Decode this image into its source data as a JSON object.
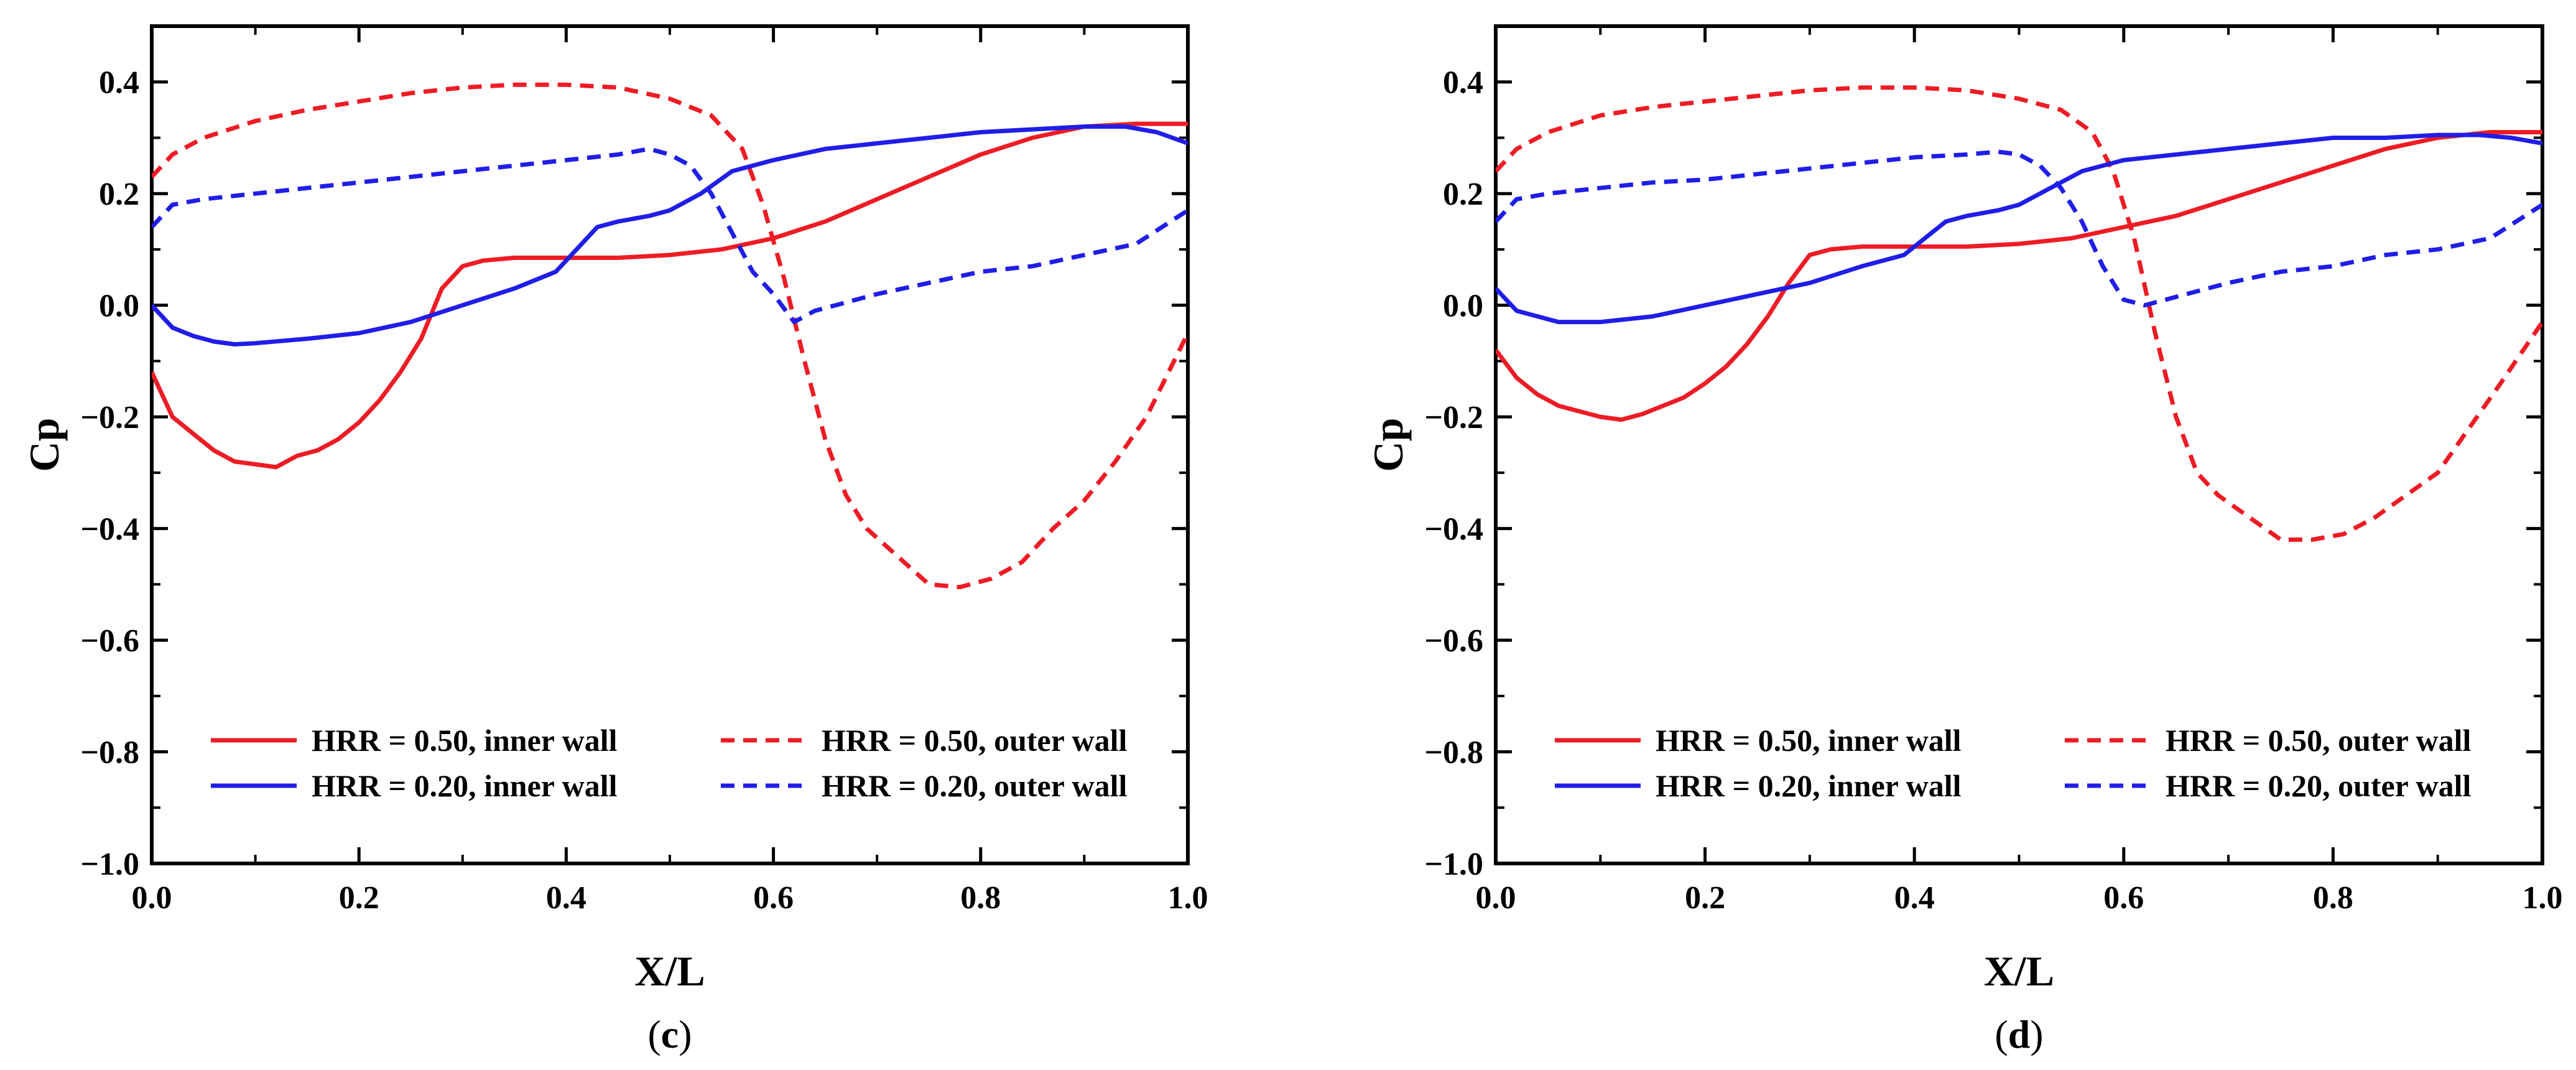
{
  "chart_data": [
    {
      "type": "line",
      "panel_label": {
        "open": "(",
        "letter": "c",
        "close": ")"
      },
      "xlabel": "X/L",
      "ylabel": "Cp",
      "xlim": [
        0.0,
        1.0
      ],
      "ylim": [
        -1.0,
        0.5
      ],
      "xticks": [
        0.0,
        0.2,
        0.4,
        0.6,
        0.8,
        1.0
      ],
      "xtick_labels": [
        "0.0",
        "0.2",
        "0.4",
        "0.6",
        "0.8",
        "1.0"
      ],
      "yticks": [
        -1.0,
        -0.8,
        -0.6,
        -0.4,
        -0.2,
        0.0,
        0.2,
        0.4
      ],
      "ytick_labels": [
        "−1.0",
        "−0.8",
        "−0.6",
        "−0.4",
        "−0.2",
        "0.0",
        "0.2",
        "0.4"
      ],
      "legend_position": "lower-left",
      "series": [
        {
          "name": "HRR = 0.50, inner wall",
          "color": "#ee1c25",
          "style": "solid",
          "x": [
            0.0,
            0.02,
            0.04,
            0.06,
            0.08,
            0.1,
            0.12,
            0.14,
            0.16,
            0.18,
            0.2,
            0.22,
            0.24,
            0.26,
            0.28,
            0.3,
            0.32,
            0.35,
            0.4,
            0.45,
            0.5,
            0.55,
            0.6,
            0.65,
            0.7,
            0.75,
            0.8,
            0.85,
            0.9,
            0.95,
            1.0
          ],
          "y": [
            -0.12,
            -0.2,
            -0.23,
            -0.26,
            -0.28,
            -0.285,
            -0.29,
            -0.27,
            -0.26,
            -0.24,
            -0.21,
            -0.17,
            -0.12,
            -0.06,
            0.03,
            0.07,
            0.08,
            0.085,
            0.085,
            0.085,
            0.09,
            0.1,
            0.12,
            0.15,
            0.19,
            0.23,
            0.27,
            0.3,
            0.32,
            0.325,
            0.325
          ]
        },
        {
          "name": "HRR = 0.50, outer wall",
          "color": "#ee1c25",
          "style": "dashed",
          "x": [
            0.0,
            0.02,
            0.05,
            0.1,
            0.15,
            0.2,
            0.25,
            0.3,
            0.35,
            0.4,
            0.45,
            0.5,
            0.54,
            0.57,
            0.59,
            0.61,
            0.63,
            0.65,
            0.67,
            0.69,
            0.72,
            0.75,
            0.78,
            0.81,
            0.84,
            0.87,
            0.9,
            0.93,
            0.96,
            1.0
          ],
          "y": [
            0.23,
            0.27,
            0.3,
            0.33,
            0.35,
            0.365,
            0.38,
            0.39,
            0.395,
            0.395,
            0.39,
            0.37,
            0.34,
            0.28,
            0.18,
            0.05,
            -0.1,
            -0.24,
            -0.34,
            -0.4,
            -0.45,
            -0.5,
            -0.505,
            -0.49,
            -0.46,
            -0.4,
            -0.35,
            -0.28,
            -0.2,
            -0.05
          ]
        },
        {
          "name": "HRR = 0.20, inner wall",
          "color": "#1f1ee8",
          "style": "solid",
          "x": [
            0.0,
            0.02,
            0.04,
            0.06,
            0.08,
            0.1,
            0.15,
            0.2,
            0.25,
            0.3,
            0.35,
            0.39,
            0.41,
            0.43,
            0.45,
            0.48,
            0.5,
            0.53,
            0.56,
            0.6,
            0.65,
            0.7,
            0.75,
            0.8,
            0.85,
            0.9,
            0.94,
            0.97,
            1.0
          ],
          "y": [
            0.0,
            -0.04,
            -0.055,
            -0.065,
            -0.07,
            -0.068,
            -0.06,
            -0.05,
            -0.03,
            0.0,
            0.03,
            0.06,
            0.1,
            0.14,
            0.15,
            0.16,
            0.17,
            0.2,
            0.24,
            0.26,
            0.28,
            0.29,
            0.3,
            0.31,
            0.315,
            0.32,
            0.32,
            0.31,
            0.29
          ]
        },
        {
          "name": "HRR = 0.20, outer wall",
          "color": "#1f1ee8",
          "style": "dashed",
          "x": [
            0.0,
            0.02,
            0.05,
            0.1,
            0.15,
            0.2,
            0.25,
            0.3,
            0.35,
            0.4,
            0.45,
            0.48,
            0.5,
            0.52,
            0.54,
            0.56,
            0.58,
            0.6,
            0.62,
            0.64,
            0.66,
            0.7,
            0.75,
            0.8,
            0.85,
            0.9,
            0.95,
            1.0
          ],
          "y": [
            0.14,
            0.18,
            0.19,
            0.2,
            0.21,
            0.22,
            0.23,
            0.24,
            0.25,
            0.26,
            0.27,
            0.28,
            0.27,
            0.25,
            0.2,
            0.13,
            0.06,
            0.02,
            -0.03,
            -0.01,
            0.0,
            0.02,
            0.04,
            0.06,
            0.07,
            0.09,
            0.11,
            0.17
          ]
        }
      ]
    },
    {
      "type": "line",
      "panel_label": {
        "open": "(",
        "letter": "d",
        "close": ")"
      },
      "xlabel": "X/L",
      "ylabel": "Cp",
      "xlim": [
        0.0,
        1.0
      ],
      "ylim": [
        -1.0,
        0.5
      ],
      "xticks": [
        0.0,
        0.2,
        0.4,
        0.6,
        0.8,
        1.0
      ],
      "xtick_labels": [
        "0.0",
        "0.2",
        "0.4",
        "0.6",
        "0.8",
        "1.0"
      ],
      "yticks": [
        -1.0,
        -0.8,
        -0.6,
        -0.4,
        -0.2,
        0.0,
        0.2,
        0.4
      ],
      "ytick_labels": [
        "−1.0",
        "−0.8",
        "−0.6",
        "−0.4",
        "−0.2",
        "0.0",
        "0.2",
        "0.4"
      ],
      "legend_position": "lower-left",
      "series": [
        {
          "name": "HRR = 0.50, inner wall",
          "color": "#ee1c25",
          "style": "solid",
          "x": [
            0.0,
            0.02,
            0.04,
            0.06,
            0.08,
            0.1,
            0.12,
            0.14,
            0.16,
            0.18,
            0.2,
            0.22,
            0.24,
            0.26,
            0.28,
            0.3,
            0.32,
            0.35,
            0.4,
            0.45,
            0.5,
            0.55,
            0.6,
            0.65,
            0.7,
            0.75,
            0.8,
            0.85,
            0.9,
            0.95,
            1.0
          ],
          "y": [
            -0.08,
            -0.13,
            -0.16,
            -0.18,
            -0.19,
            -0.2,
            -0.205,
            -0.195,
            -0.18,
            -0.165,
            -0.14,
            -0.11,
            -0.07,
            -0.02,
            0.04,
            0.09,
            0.1,
            0.105,
            0.105,
            0.105,
            0.11,
            0.12,
            0.14,
            0.16,
            0.19,
            0.22,
            0.25,
            0.28,
            0.3,
            0.31,
            0.31
          ]
        },
        {
          "name": "HRR = 0.50, outer wall",
          "color": "#ee1c25",
          "style": "dashed",
          "x": [
            0.0,
            0.02,
            0.05,
            0.1,
            0.15,
            0.2,
            0.25,
            0.3,
            0.35,
            0.4,
            0.45,
            0.5,
            0.54,
            0.57,
            0.59,
            0.61,
            0.63,
            0.65,
            0.67,
            0.69,
            0.72,
            0.75,
            0.78,
            0.81,
            0.84,
            0.87,
            0.9,
            0.93,
            0.96,
            1.0
          ],
          "y": [
            0.24,
            0.28,
            0.31,
            0.34,
            0.355,
            0.365,
            0.375,
            0.385,
            0.39,
            0.39,
            0.385,
            0.37,
            0.35,
            0.31,
            0.24,
            0.12,
            -0.05,
            -0.2,
            -0.3,
            -0.34,
            -0.38,
            -0.42,
            -0.42,
            -0.41,
            -0.38,
            -0.34,
            -0.3,
            -0.22,
            -0.14,
            -0.03
          ]
        },
        {
          "name": "HRR = 0.20, inner wall",
          "color": "#1f1ee8",
          "style": "solid",
          "x": [
            0.0,
            0.02,
            0.04,
            0.06,
            0.08,
            0.1,
            0.15,
            0.2,
            0.25,
            0.3,
            0.35,
            0.39,
            0.41,
            0.43,
            0.45,
            0.48,
            0.5,
            0.53,
            0.56,
            0.6,
            0.65,
            0.7,
            0.75,
            0.8,
            0.85,
            0.9,
            0.94,
            0.97,
            1.0
          ],
          "y": [
            0.03,
            -0.01,
            -0.02,
            -0.03,
            -0.03,
            -0.03,
            -0.02,
            0.0,
            0.02,
            0.04,
            0.07,
            0.09,
            0.12,
            0.15,
            0.16,
            0.17,
            0.18,
            0.21,
            0.24,
            0.26,
            0.27,
            0.28,
            0.29,
            0.3,
            0.3,
            0.305,
            0.305,
            0.3,
            0.29
          ]
        },
        {
          "name": "HRR = 0.20, outer wall",
          "color": "#1f1ee8",
          "style": "dashed",
          "x": [
            0.0,
            0.02,
            0.05,
            0.1,
            0.15,
            0.2,
            0.25,
            0.3,
            0.35,
            0.4,
            0.45,
            0.48,
            0.5,
            0.52,
            0.54,
            0.56,
            0.58,
            0.6,
            0.62,
            0.64,
            0.66,
            0.7,
            0.75,
            0.8,
            0.85,
            0.9,
            0.95,
            1.0
          ],
          "y": [
            0.15,
            0.19,
            0.2,
            0.21,
            0.22,
            0.225,
            0.235,
            0.245,
            0.255,
            0.265,
            0.27,
            0.275,
            0.27,
            0.25,
            0.21,
            0.15,
            0.07,
            0.01,
            0.0,
            0.01,
            0.02,
            0.04,
            0.06,
            0.07,
            0.09,
            0.1,
            0.12,
            0.18
          ]
        }
      ]
    }
  ]
}
